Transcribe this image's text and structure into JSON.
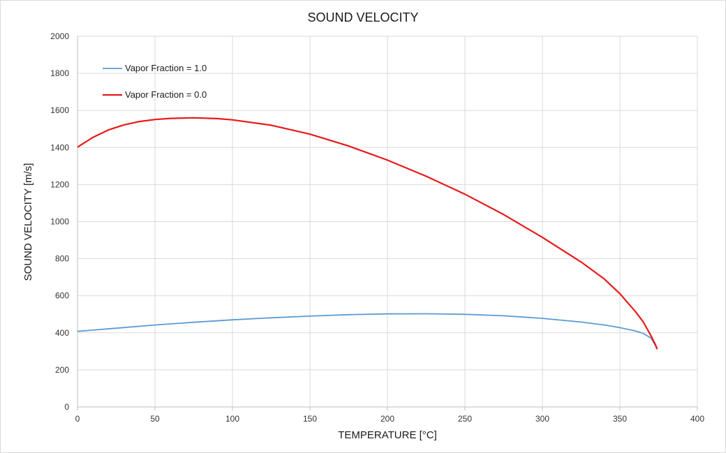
{
  "chart_data": {
    "type": "line",
    "title": "SOUND VELOCITY",
    "xlabel": "TEMPERATURE [°C]",
    "ylabel": "SOUND VELOCITY [m/s]",
    "xlim": [
      0,
      400
    ],
    "ylim": [
      0,
      2000
    ],
    "x_ticks": [
      0,
      50,
      100,
      150,
      200,
      250,
      300,
      350,
      400
    ],
    "y_ticks": [
      0,
      200,
      400,
      600,
      800,
      1000,
      1200,
      1400,
      1600,
      1800,
      2000
    ],
    "grid": true,
    "legend_position": "top-left",
    "series": [
      {
        "name": "Vapor Fraction = 1.0",
        "color": "#5b9bd5",
        "points": [
          [
            0,
            408
          ],
          [
            25,
            425
          ],
          [
            50,
            442
          ],
          [
            75,
            457
          ],
          [
            100,
            470
          ],
          [
            125,
            481
          ],
          [
            150,
            490
          ],
          [
            175,
            498
          ],
          [
            200,
            502
          ],
          [
            225,
            503
          ],
          [
            250,
            500
          ],
          [
            275,
            492
          ],
          [
            300,
            478
          ],
          [
            325,
            458
          ],
          [
            340,
            442
          ],
          [
            350,
            428
          ],
          [
            360,
            410
          ],
          [
            365,
            397
          ],
          [
            370,
            372
          ],
          [
            373,
            330
          ],
          [
            374,
            318
          ]
        ]
      },
      {
        "name": "Vapor Fraction = 0.0",
        "color": "#e8191a",
        "points": [
          [
            0,
            1402
          ],
          [
            10,
            1455
          ],
          [
            20,
            1495
          ],
          [
            30,
            1522
          ],
          [
            40,
            1540
          ],
          [
            50,
            1551
          ],
          [
            60,
            1557
          ],
          [
            75,
            1560
          ],
          [
            90,
            1556
          ],
          [
            100,
            1549
          ],
          [
            125,
            1520
          ],
          [
            150,
            1472
          ],
          [
            175,
            1408
          ],
          [
            200,
            1332
          ],
          [
            225,
            1245
          ],
          [
            250,
            1148
          ],
          [
            275,
            1038
          ],
          [
            300,
            915
          ],
          [
            325,
            782
          ],
          [
            340,
            690
          ],
          [
            350,
            611
          ],
          [
            360,
            515
          ],
          [
            365,
            460
          ],
          [
            370,
            385
          ],
          [
            373,
            335
          ],
          [
            374,
            312
          ]
        ]
      }
    ]
  }
}
